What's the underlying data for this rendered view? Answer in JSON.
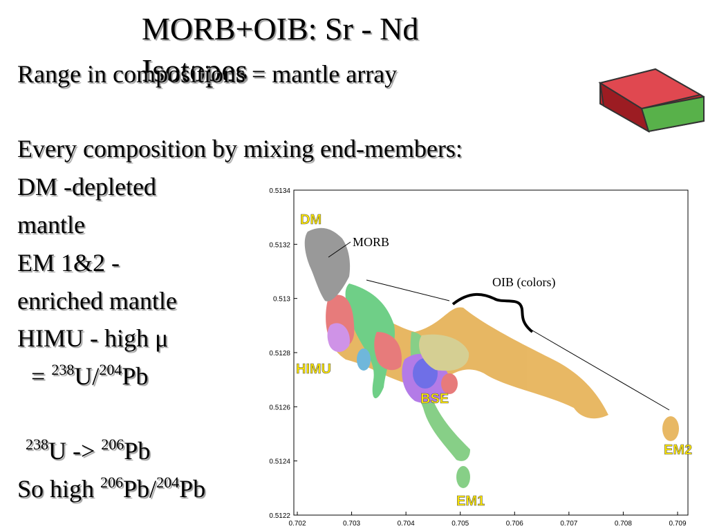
{
  "header": {
    "title_lines": [
      "MORB+OIB: Sr - Nd",
      "Isotopes"
    ]
  },
  "body": {
    "lines": [
      {
        "segments": [
          {
            "t": "Range in compositions = mantle array"
          }
        ]
      },
      {
        "segments": [
          {
            "t": "Every composition by mixing end-members:"
          }
        ]
      },
      {
        "segments": [
          {
            "t": "DM -depleted"
          }
        ]
      },
      {
        "segments": [
          {
            "t": "mantle"
          }
        ]
      },
      {
        "segments": [
          {
            "t": "EM 1&2 -"
          }
        ]
      },
      {
        "segments": [
          {
            "t": "enriched mantle"
          }
        ]
      },
      {
        "segments": [
          {
            "t": "HIMU - high μ"
          }
        ]
      },
      {
        "segments": [
          {
            "t": "= "
          },
          {
            "sup": "238"
          },
          {
            "t": "U/"
          },
          {
            "sup": "204"
          },
          {
            "t": "Pb"
          }
        ]
      },
      {
        "segments": [
          {
            "sup": "238"
          },
          {
            "t": "U -> "
          },
          {
            "sup": "206"
          },
          {
            "t": "Pb"
          }
        ]
      },
      {
        "segments": [
          {
            "t": "So high "
          },
          {
            "sup": "206"
          },
          {
            "t": "Pb/"
          },
          {
            "sup": "204"
          },
          {
            "t": "Pb"
          }
        ]
      }
    ]
  },
  "figure": {
    "y_ticks": [
      "0.5134",
      "0.5132",
      "0.513",
      "0.5128",
      "0.5126",
      "0.5124",
      "0.5122"
    ],
    "x_ticks": [
      "0.702",
      "0.703",
      "0.704",
      "0.705",
      "0.706",
      "0.707",
      "0.708",
      "0.709"
    ],
    "labels": {
      "dm": "DM",
      "himu": "HIMU",
      "bse": "BSE",
      "em1": "EM1",
      "em2": "EM2",
      "morb": "MORB",
      "oib": "OIB (colors)"
    }
  }
}
